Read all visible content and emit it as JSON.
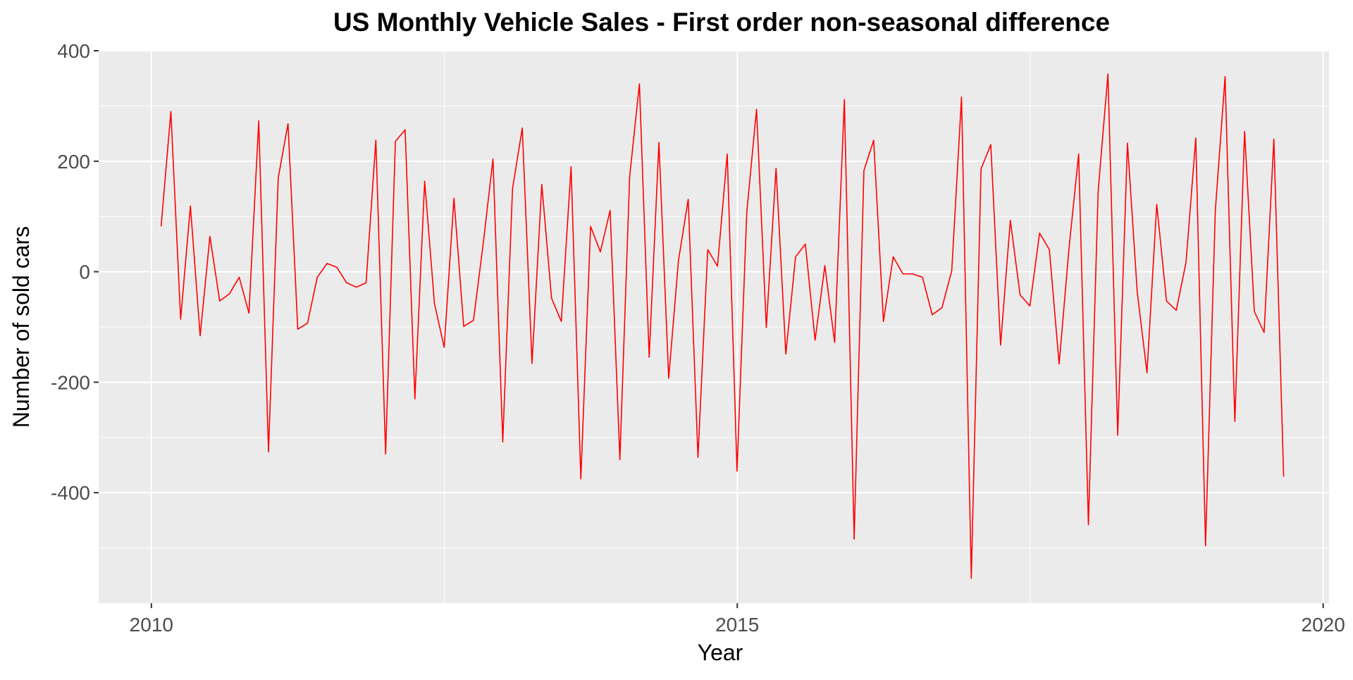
{
  "chart_data": {
    "type": "line",
    "title": "US Monthly Vehicle Sales - First order non-seasonal difference",
    "xlabel": "Year",
    "ylabel": "Number of sold cars",
    "xlim": [
      2009.55,
      2020.05
    ],
    "ylim": [
      -600,
      400
    ],
    "x_ticks": [
      2010,
      2015,
      2020
    ],
    "x_tick_labels": [
      "2010",
      "2015",
      "2020"
    ],
    "y_ticks": [
      400,
      200,
      0,
      -200,
      -400
    ],
    "y_tick_labels": [
      "400",
      "200",
      "0",
      "-200",
      "-400"
    ],
    "grid": true,
    "legend": "none",
    "series": [
      {
        "color": "#ff0000",
        "x_start": 2010.083,
        "x_step": 0.0833,
        "values": [
          82,
          290,
          -86,
          119,
          -116,
          64,
          -53,
          -40,
          -10,
          -75,
          273,
          -326,
          170,
          268,
          -104,
          -93,
          -10,
          15,
          8,
          -20,
          -28,
          -20,
          238,
          -330,
          236,
          257,
          -230,
          164,
          -57,
          -137,
          133,
          -99,
          -88,
          51,
          204,
          -308,
          150,
          260,
          -166,
          158,
          -48,
          -90,
          190,
          -375,
          82,
          36,
          111,
          -340,
          172,
          340,
          -155,
          234,
          -193,
          20,
          131,
          -336,
          40,
          10,
          213,
          -361,
          108,
          294,
          -101,
          187,
          -149,
          27,
          50,
          -124,
          11,
          -128,
          312,
          -484,
          183,
          238,
          -90,
          27,
          -4,
          -4,
          -10,
          -78,
          -65,
          2,
          316,
          -555,
          186,
          230,
          -133,
          93,
          -42,
          -62,
          70,
          40,
          -167,
          40,
          213,
          -458,
          146,
          358,
          -296,
          233,
          -36,
          -183,
          122,
          -53,
          -70,
          17,
          242,
          -496,
          110,
          353,
          -271,
          254,
          -72,
          -110,
          240,
          -371
        ]
      }
    ]
  }
}
